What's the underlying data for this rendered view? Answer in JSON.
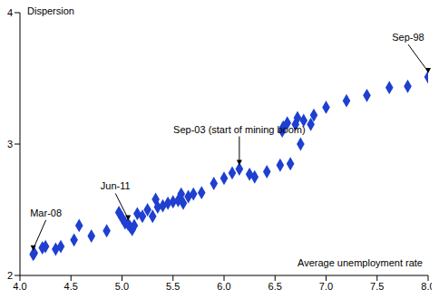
{
  "chart_data": {
    "type": "scatter",
    "y_label": "Dispersion",
    "x_label": "Average unemployment rate",
    "color": "#1e3fd0",
    "marker": "diamond",
    "grid": false,
    "xlim": [
      4,
      8
    ],
    "xticks": [
      {
        "value": 4,
        "label": "4.0"
      },
      {
        "value": 4.5,
        "label": "4.5"
      },
      {
        "value": 5,
        "label": "5.0"
      },
      {
        "value": 5.5,
        "label": "5.5"
      },
      {
        "value": 6,
        "label": "6.0"
      },
      {
        "value": 6.5,
        "label": "6.5"
      },
      {
        "value": 7,
        "label": "7.0"
      },
      {
        "value": 7.5,
        "label": "7.5"
      },
      {
        "value": 8,
        "label": "8.0"
      }
    ],
    "ylim": [
      2,
      4
    ],
    "yticks": [
      2,
      3,
      4
    ],
    "x": [
      4.13,
      4.14,
      4.22,
      4.25,
      4.35,
      4.4,
      4.53,
      4.58,
      4.7,
      4.85,
      4.97,
      5.0,
      5.03,
      5.06,
      5.08,
      5.1,
      5.12,
      5.15,
      5.2,
      5.25,
      5.3,
      5.33,
      5.35,
      5.4,
      5.45,
      5.5,
      5.55,
      5.58,
      5.6,
      5.65,
      5.7,
      5.78,
      5.9,
      6.0,
      6.08,
      6.15,
      6.25,
      6.3,
      6.42,
      6.55,
      6.57,
      6.58,
      6.62,
      6.65,
      6.7,
      6.72,
      6.75,
      6.78,
      6.85,
      6.88,
      7.0,
      7.2,
      7.4,
      7.62,
      7.8,
      8.0
    ],
    "values": [
      2.16,
      2.17,
      2.21,
      2.22,
      2.2,
      2.22,
      2.27,
      2.38,
      2.3,
      2.34,
      2.48,
      2.44,
      2.4,
      2.39,
      2.37,
      2.35,
      2.38,
      2.47,
      2.45,
      2.5,
      2.45,
      2.58,
      2.52,
      2.53,
      2.55,
      2.56,
      2.57,
      2.62,
      2.55,
      2.6,
      2.62,
      2.63,
      2.7,
      2.74,
      2.78,
      2.81,
      2.77,
      2.75,
      2.79,
      2.84,
      3.1,
      3.13,
      3.16,
      2.85,
      3.15,
      3.2,
      3.0,
      3.18,
      3.15,
      3.22,
      3.28,
      3.33,
      3.37,
      3.43,
      3.44,
      3.51
    ],
    "annotations": [
      {
        "text": "Mar-08",
        "x": 4.13,
        "y": 2.16
      },
      {
        "text": "Jun-11",
        "x": 5.06,
        "y": 2.39
      },
      {
        "text": "Sep-03 (start of mining boom)",
        "x": 6.15,
        "y": 2.81
      },
      {
        "text": "Sep-98",
        "x": 8.0,
        "y": 3.51
      }
    ]
  }
}
